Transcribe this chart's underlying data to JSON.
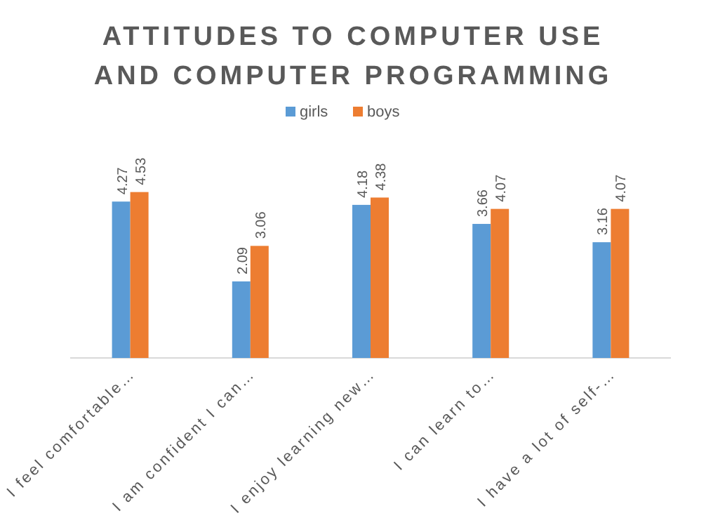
{
  "chart_data": {
    "type": "bar",
    "title": "ATTITUDES TO COMPUTER USE AND COMPUTER PROGRAMMING",
    "categories": [
      "I feel comfortable…",
      "I am confident I can…",
      "I enjoy learning new…",
      "I can learn to…",
      "I have a lot of self-…"
    ],
    "series": [
      {
        "name": "girls",
        "color": "#5b9bd5",
        "values": [
          4.27,
          2.09,
          4.18,
          3.66,
          3.16
        ]
      },
      {
        "name": "boys",
        "color": "#ed7d31",
        "values": [
          4.53,
          3.06,
          4.38,
          4.07,
          4.07
        ]
      }
    ],
    "data_labels": true,
    "legend": "top",
    "grid": false
  }
}
